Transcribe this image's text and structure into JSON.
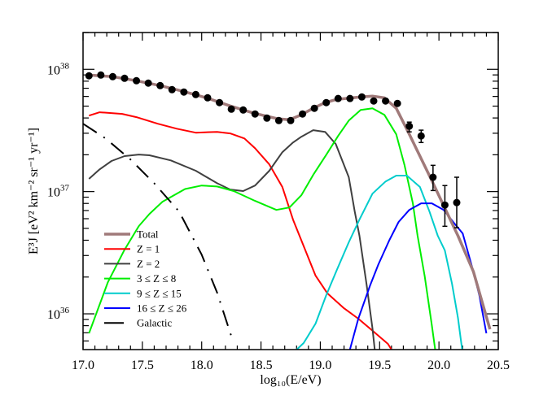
{
  "chart_data": {
    "type": "line",
    "title": "",
    "xlabel": "log₁₀(E/eV)",
    "ylabel": "E³J [eV² km⁻² sr⁻¹ yr⁻¹]",
    "xlim": [
      17.0,
      20.5
    ],
    "ylim": [
      5.1e+35,
      2e+38
    ],
    "yscale": "log",
    "grid": false,
    "legend_placement": "lower-left",
    "x_ticks": [
      "17.0",
      "17.5",
      "18.0",
      "18.5",
      "19.0",
      "19.5",
      "20.0",
      "20.5"
    ],
    "y_ticks": [
      {
        "value": 1e+36,
        "base": "10",
        "exp": "36"
      },
      {
        "value": 1e+37,
        "base": "10",
        "exp": "37"
      },
      {
        "value": 1e+38,
        "base": "10",
        "exp": "38"
      }
    ],
    "series": [
      {
        "name": "Total",
        "color": "#a07a7a",
        "style": "solid",
        "points": [
          [
            17.05,
            8.98e+37
          ],
          [
            17.25,
            8.71e+37
          ],
          [
            17.45,
            8.07e+37
          ],
          [
            17.65,
            7.36e+37
          ],
          [
            17.84,
            6.62e+37
          ],
          [
            18.04,
            5.85e+37
          ],
          [
            18.24,
            5.02e+37
          ],
          [
            18.44,
            4.38e+37
          ],
          [
            18.64,
            3.94e+37
          ],
          [
            18.74,
            3.87e+37
          ],
          [
            18.84,
            4.25e+37
          ],
          [
            18.94,
            4.8e+37
          ],
          [
            19.04,
            5.34e+37
          ],
          [
            19.14,
            5.68e+37
          ],
          [
            19.34,
            5.94e+37
          ],
          [
            19.44,
            6.04e+37
          ],
          [
            19.54,
            5.85e+37
          ],
          [
            19.64,
            4.8e+37
          ],
          [
            19.74,
            3.08e+37
          ],
          [
            19.94,
            1.23e+37
          ],
          [
            20.04,
            7.66e+36
          ],
          [
            20.16,
            4.35e+36
          ],
          [
            20.29,
            2.22e+36
          ],
          [
            20.43,
            7.48e+35
          ]
        ]
      },
      {
        "name": "Z = 1",
        "color": "#ff0000",
        "style": "solid",
        "points": [
          [
            17.05,
            4.18e+37
          ],
          [
            17.14,
            4.45e+37
          ],
          [
            17.33,
            4.32e+37
          ],
          [
            17.45,
            4.06e+37
          ],
          [
            17.63,
            3.59e+37
          ],
          [
            17.79,
            3.27e+37
          ],
          [
            17.95,
            3.03e+37
          ],
          [
            18.13,
            3.08e+37
          ],
          [
            18.24,
            2.99e+37
          ],
          [
            18.36,
            2.72e+37
          ],
          [
            18.45,
            2.26e+37
          ],
          [
            18.57,
            1.67e+37
          ],
          [
            18.68,
            1.09e+37
          ],
          [
            18.77,
            5.9e+36
          ],
          [
            18.85,
            3.78e+36
          ],
          [
            18.96,
            2.05e+36
          ],
          [
            19.06,
            1.47e+36
          ],
          [
            19.2,
            1.11e+36
          ],
          [
            19.32,
            9.12e+35
          ],
          [
            19.45,
            7.14e+35
          ],
          [
            19.57,
            5.68e+35
          ],
          [
            19.63,
            4.58e+35
          ]
        ]
      },
      {
        "name": "Z = 2",
        "color": "#404040",
        "style": "solid",
        "points": [
          [
            17.05,
            1.27e+37
          ],
          [
            17.14,
            1.52e+37
          ],
          [
            17.24,
            1.78e+37
          ],
          [
            17.35,
            1.95e+37
          ],
          [
            17.47,
            2.01e+37
          ],
          [
            17.56,
            1.98e+37
          ],
          [
            17.74,
            1.8e+37
          ],
          [
            17.95,
            1.48e+37
          ],
          [
            18.13,
            1.17e+37
          ],
          [
            18.24,
            1.04e+37
          ],
          [
            18.35,
            1.01e+37
          ],
          [
            18.45,
            1.12e+37
          ],
          [
            18.57,
            1.48e+37
          ],
          [
            18.68,
            2.1e+37
          ],
          [
            18.77,
            2.52e+37
          ],
          [
            18.84,
            2.81e+37
          ],
          [
            18.94,
            3.18e+37
          ],
          [
            19.04,
            3.08e+37
          ],
          [
            19.13,
            2.45e+37
          ],
          [
            19.24,
            1.31e+37
          ],
          [
            19.29,
            6.87e+36
          ],
          [
            19.33,
            4.35e+36
          ],
          [
            19.39,
            1.73e+36
          ],
          [
            19.44,
            7.59e+35
          ],
          [
            19.46,
            4.94e+35
          ]
        ]
      },
      {
        "name": "3 ≤ Z ≤ 8",
        "color": "#00ee00",
        "style": "solid",
        "points": [
          [
            17.05,
            6.93e+35
          ],
          [
            17.21,
            1.82e+36
          ],
          [
            17.35,
            3.35e+36
          ],
          [
            17.47,
            5.22e+36
          ],
          [
            17.56,
            6.57e+36
          ],
          [
            17.67,
            8.26e+36
          ],
          [
            17.86,
            1.05e+37
          ],
          [
            18.0,
            1.12e+37
          ],
          [
            18.13,
            1.1e+37
          ],
          [
            18.27,
            1.01e+37
          ],
          [
            18.45,
            8.39e+36
          ],
          [
            18.63,
            7.08e+36
          ],
          [
            18.74,
            7.41e+36
          ],
          [
            18.84,
            9.33e+36
          ],
          [
            18.94,
            1.37e+37
          ],
          [
            19.05,
            2e+37
          ],
          [
            19.15,
            2.85e+37
          ],
          [
            19.24,
            3.81e+37
          ],
          [
            19.34,
            4.65e+37
          ],
          [
            19.44,
            4.8e+37
          ],
          [
            19.54,
            4.25e+37
          ],
          [
            19.64,
            2.94e+37
          ],
          [
            19.71,
            1.64e+37
          ],
          [
            19.78,
            8.02e+36
          ],
          [
            19.82,
            4.35e+36
          ],
          [
            19.88,
            2.02e+36
          ],
          [
            19.94,
            8.07e+35
          ],
          [
            19.97,
            4.94e+35
          ]
        ]
      },
      {
        "name": "9 ≤ Z ≤ 15",
        "color": "#00cccc",
        "style": "solid",
        "points": [
          [
            18.75,
            4.58e+35
          ],
          [
            18.86,
            5.77e+35
          ],
          [
            18.96,
            8.32e+35
          ],
          [
            19.05,
            1.42e+36
          ],
          [
            19.14,
            2.29e+36
          ],
          [
            19.24,
            3.85e+36
          ],
          [
            19.33,
            5.9e+36
          ],
          [
            19.44,
            9.62e+36
          ],
          [
            19.55,
            1.21e+37
          ],
          [
            19.64,
            1.35e+37
          ],
          [
            19.73,
            1.35e+37
          ],
          [
            19.84,
            1.09e+37
          ],
          [
            19.92,
            6.87e+36
          ],
          [
            19.99,
            4.35e+36
          ],
          [
            20.05,
            3.3e+36
          ],
          [
            20.11,
            1.76e+36
          ],
          [
            20.16,
            9.27e+35
          ],
          [
            20.2,
            4.72e+35
          ]
        ]
      },
      {
        "name": "16 ≤ Z ≤ 26",
        "color": "#0000ff",
        "style": "solid",
        "points": [
          [
            19.24,
            4.72e+35
          ],
          [
            19.32,
            9.12e+35
          ],
          [
            19.42,
            1.71e+36
          ],
          [
            19.49,
            2.54e+36
          ],
          [
            19.58,
            3.96e+36
          ],
          [
            19.66,
            5.64e+36
          ],
          [
            19.75,
            7.08e+36
          ],
          [
            19.85,
            8.02e+36
          ],
          [
            19.94,
            8.02e+36
          ],
          [
            20.04,
            7.08e+36
          ],
          [
            20.12,
            5.64e+36
          ],
          [
            20.2,
            4.55e+36
          ],
          [
            20.29,
            2.22e+36
          ],
          [
            20.34,
            1.42e+36
          ],
          [
            20.4,
            6.93e+35
          ]
        ]
      },
      {
        "name": "Galactic",
        "color": "#000000",
        "style": "dash-dot",
        "points": [
          [
            17.0,
            3.59e+37
          ],
          [
            17.19,
            2.72e+37
          ],
          [
            17.4,
            1.83e+37
          ],
          [
            17.6,
            1.17e+37
          ],
          [
            17.81,
            6.87e+36
          ],
          [
            18.0,
            3.05e+36
          ],
          [
            18.13,
            1.49e+36
          ],
          [
            18.26,
            6.12e+35
          ]
        ]
      }
    ],
    "data_points": {
      "color": "#000000",
      "x": [
        17.05,
        17.15,
        17.25,
        17.35,
        17.45,
        17.55,
        17.65,
        17.75,
        17.85,
        17.95,
        18.05,
        18.15,
        18.25,
        18.35,
        18.45,
        18.55,
        18.65,
        18.75,
        18.85,
        18.95,
        19.05,
        19.15,
        19.25,
        19.35,
        19.45,
        19.55,
        19.65,
        19.75,
        19.85,
        19.95,
        20.05,
        20.15
      ],
      "y": [
        8.85e+37,
        8.98e+37,
        8.71e+37,
        8.45e+37,
        8.07e+37,
        7.71e+37,
        7.36e+37,
        6.82e+37,
        6.52e+37,
        6.22e+37,
        5.85e+37,
        5.34e+37,
        4.72e+37,
        4.65e+37,
        4.31e+37,
        3.99e+37,
        3.81e+37,
        3.81e+37,
        4.31e+37,
        4.8e+37,
        5.34e+37,
        5.77e+37,
        5.77e+37,
        5.94e+37,
        5.51e+37,
        5.51e+37,
        5.26e+37,
        3.43e+37,
        2.85e+37,
        1.31e+37,
        7.76e+36,
        8.13e+36
      ],
      "error_bars": [
        null,
        null,
        null,
        null,
        null,
        null,
        null,
        null,
        null,
        null,
        null,
        null,
        null,
        null,
        null,
        null,
        null,
        null,
        null,
        null,
        null,
        null,
        null,
        null,
        null,
        null,
        null,
        [
          3.08e+37,
          3.7e+37
        ],
        [
          2.52e+37,
          3.18e+37
        ],
        [
          1.02e+37,
          1.64e+37
        ],
        [
          5.2e+36,
          1.12e+37
        ],
        [
          5.06e+36,
          1.31e+37
        ]
      ]
    }
  }
}
